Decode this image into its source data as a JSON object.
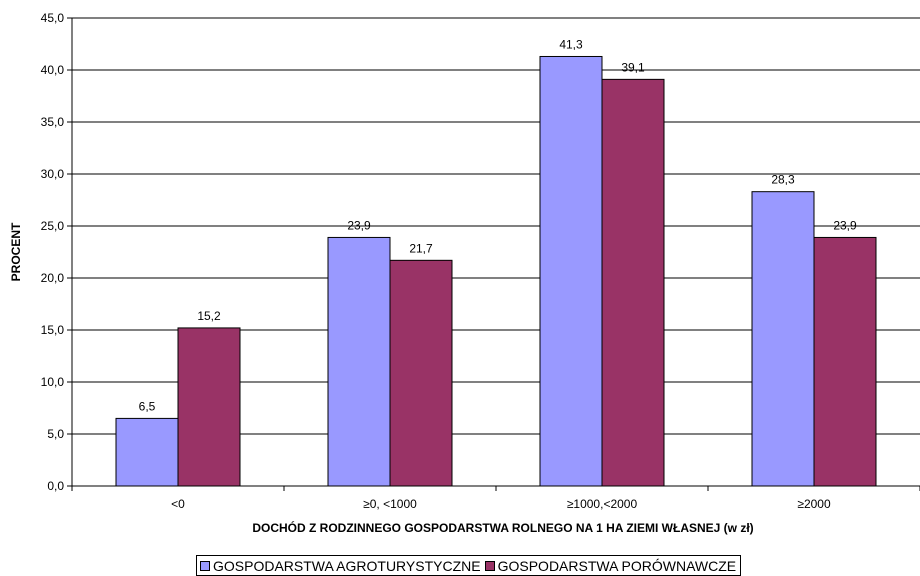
{
  "chart_data": {
    "type": "bar",
    "categories": [
      "<0",
      "≥0, <1000",
      "≥1000,<2000",
      "≥2000"
    ],
    "series": [
      {
        "name": "GOSPODARSTWA AGROTURYSTYCZNE",
        "color": "#9999FF",
        "values": [
          6.5,
          23.9,
          41.3,
          28.3
        ]
      },
      {
        "name": "GOSPODARSTWA PORÓWNAWCZE",
        "color": "#993366",
        "values": [
          15.2,
          21.7,
          39.1,
          23.9
        ]
      }
    ],
    "title": "",
    "xlabel": "DOCHÓD Z RODZINNEGO GOSPODARSTWA ROLNEGO NA 1 HA ZIEMI WŁASNEJ (w zł)",
    "ylabel": "PROCENT",
    "ylim": [
      0,
      45
    ],
    "ytick_step": 5,
    "grid": true,
    "legend_position": "bottom"
  }
}
